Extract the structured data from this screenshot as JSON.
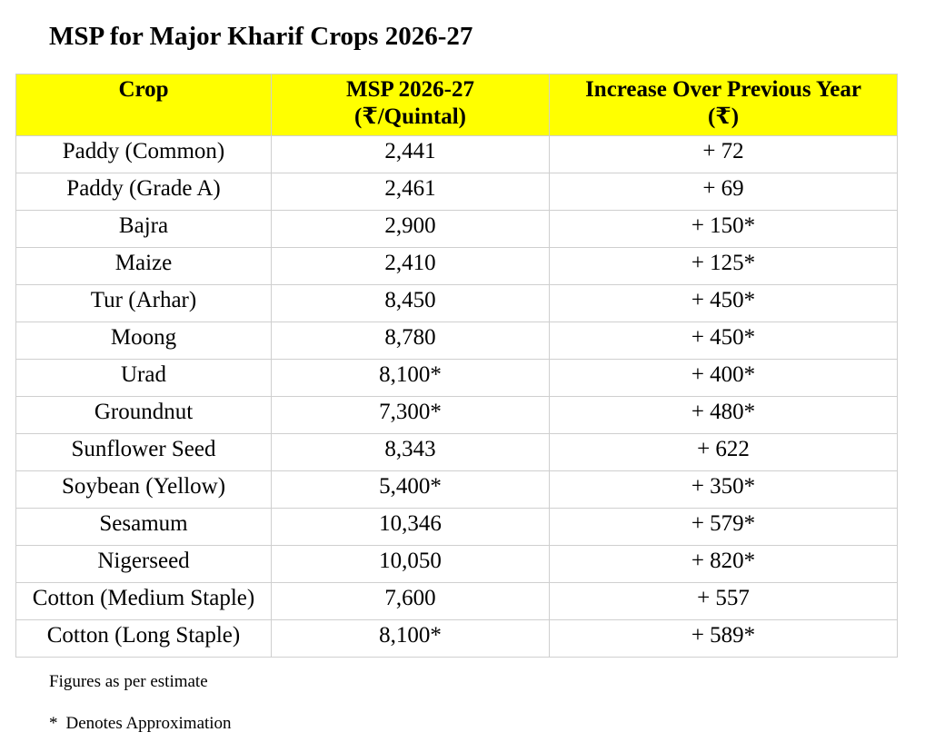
{
  "title": "MSP for Major Kharif Crops 2026-27",
  "table": {
    "headers": {
      "crop": "Crop",
      "msp_line1": "MSP 2026-27",
      "msp_line2": "(₹/Quintal)",
      "increase_line1": "Increase Over Previous Year",
      "increase_line2": "(₹)"
    },
    "header_bg": "#ffff00",
    "rows": [
      {
        "crop": "Paddy (Common)",
        "msp": "2,441",
        "increase": "+ 72"
      },
      {
        "crop": "Paddy (Grade A)",
        "msp": "2,461",
        "increase": "+ 69"
      },
      {
        "crop": "Bajra",
        "msp": "2,900",
        "increase": "+ 150*"
      },
      {
        "crop": "Maize",
        "msp": "2,410",
        "increase": "+ 125*"
      },
      {
        "crop": "Tur (Arhar)",
        "msp": "8,450",
        "increase": "+ 450*"
      },
      {
        "crop": "Moong",
        "msp": "8,780",
        "increase": "+ 450*"
      },
      {
        "crop": "Urad",
        "msp": "8,100*",
        "increase": "+ 400*"
      },
      {
        "crop": "Groundnut",
        "msp": "7,300*",
        "increase": "+ 480*"
      },
      {
        "crop": "Sunflower Seed",
        "msp": "8,343",
        "increase": "+ 622"
      },
      {
        "crop": "Soybean (Yellow)",
        "msp": "5,400*",
        "increase": "+ 350*"
      },
      {
        "crop": "Sesamum",
        "msp": "10,346",
        "increase": "+ 579*"
      },
      {
        "crop": "Nigerseed",
        "msp": "10,050",
        "increase": "+ 820*"
      },
      {
        "crop": "Cotton (Medium Staple)",
        "msp": "7,600",
        "increase": "+ 557"
      },
      {
        "crop": "Cotton (Long Staple)",
        "msp": "8,100*",
        "increase": "+ 589*"
      }
    ]
  },
  "notes": {
    "estimate": "Figures as per estimate",
    "asterisk_symbol": "*",
    "asterisk_text": "Denotes Approximation"
  }
}
